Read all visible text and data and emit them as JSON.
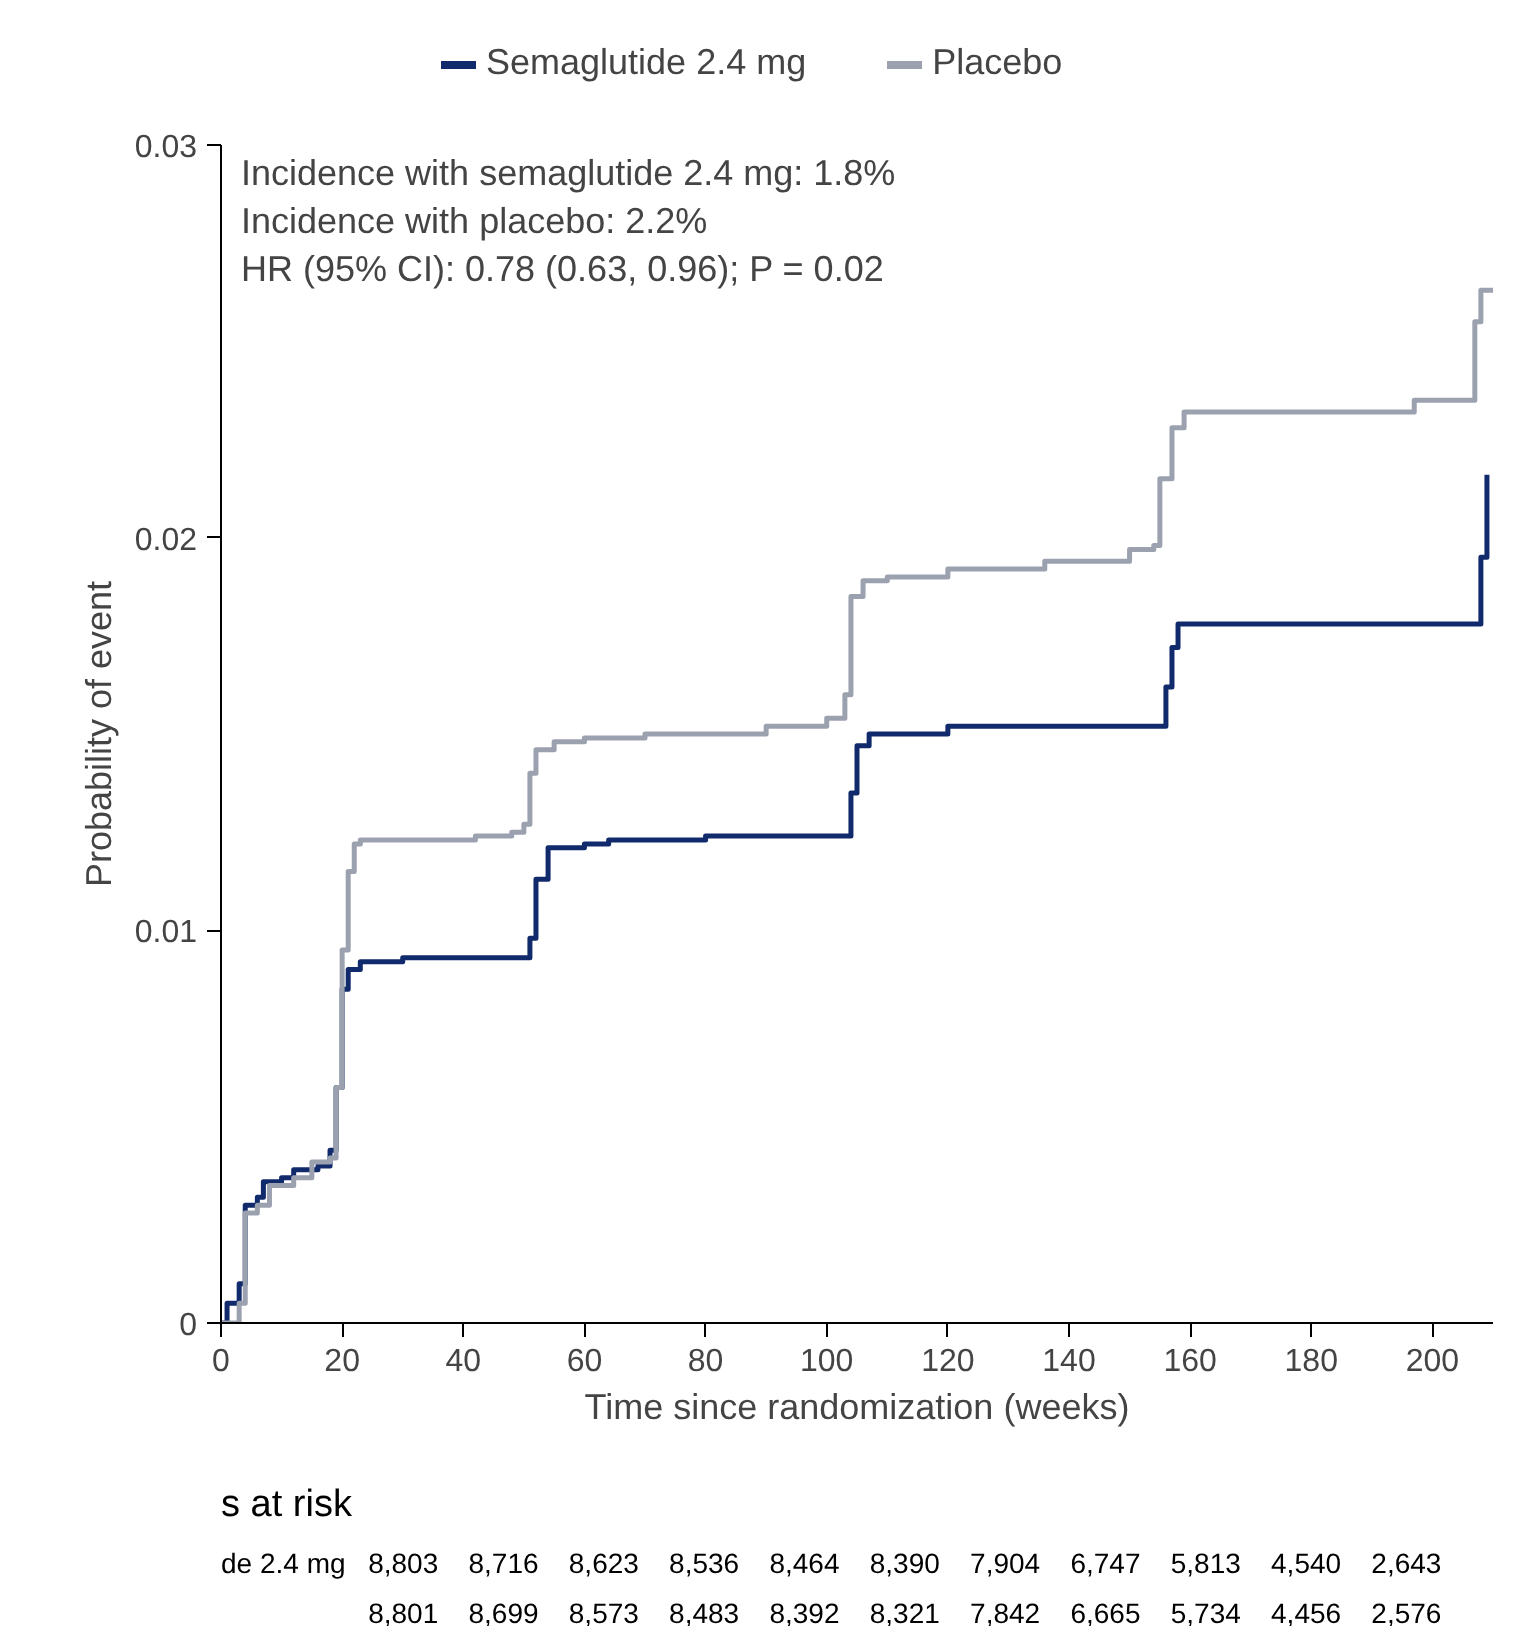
{
  "chart_data": {
    "type": "step",
    "xlabel": "Time since randomization (weeks)",
    "ylabel": "Probability of event",
    "xlim": [
      0,
      210
    ],
    "ylim": [
      0,
      0.03
    ],
    "xticks": [
      0,
      20,
      40,
      60,
      80,
      100,
      120,
      140,
      160,
      180,
      200
    ],
    "yticks": [
      0,
      0.01,
      0.02,
      0.03
    ],
    "legend": "top left",
    "grid": false,
    "series": [
      {
        "name": "Semaglutide 2.4 mg",
        "color": "#102a6b",
        "x": [
          0,
          1,
          3,
          4,
          6,
          7,
          10,
          12,
          16,
          18,
          19,
          20,
          21,
          23,
          30,
          50,
          51,
          52,
          54,
          60,
          64,
          80,
          103,
          104,
          105,
          107,
          120,
          155,
          156,
          157,
          158,
          207,
          208,
          209
        ],
        "values": [
          0,
          0.0005,
          0.001,
          0.003,
          0.0032,
          0.0036,
          0.0037,
          0.0039,
          0.004,
          0.0044,
          0.006,
          0.0085,
          0.009,
          0.0092,
          0.0093,
          0.0093,
          0.0098,
          0.0113,
          0.0121,
          0.0122,
          0.0123,
          0.0124,
          0.0124,
          0.0135,
          0.0147,
          0.015,
          0.0152,
          0.0152,
          0.0162,
          0.0172,
          0.0178,
          0.0178,
          0.0195,
          0.0216
        ]
      },
      {
        "name": "Placebo",
        "color": "#9ba1ae",
        "x": [
          0,
          3,
          4,
          6,
          8,
          12,
          15,
          18,
          19,
          20,
          21,
          22,
          23,
          40,
          42,
          48,
          50,
          51,
          52,
          55,
          60,
          70,
          90,
          100,
          103,
          104,
          106,
          110,
          120,
          136,
          150,
          154,
          155,
          157,
          159,
          196,
          197,
          206,
          207,
          208,
          210
        ],
        "values": [
          0,
          0.0005,
          0.0028,
          0.003,
          0.0035,
          0.0037,
          0.0041,
          0.0042,
          0.006,
          0.0095,
          0.0115,
          0.0122,
          0.0123,
          0.0123,
          0.0124,
          0.0125,
          0.0127,
          0.014,
          0.0146,
          0.0148,
          0.0149,
          0.015,
          0.0152,
          0.0154,
          0.016,
          0.0185,
          0.0189,
          0.019,
          0.0192,
          0.0194,
          0.0197,
          0.0198,
          0.0215,
          0.0228,
          0.0232,
          0.0232,
          0.0235,
          0.0235,
          0.0255,
          0.0263,
          0.0263
        ]
      }
    ],
    "annotations": [
      "Incidence with semaglutide 2.4 mg: 1.8%",
      "Incidence with placebo: 2.2%",
      "HR (95% CI): 0.78 (0.63, 0.96); P = 0.02",
      "s at risk",
      "de 2.4 mg",
      "8,803 8,716 8,623 8,536 8,464 8,390 7,904 6,747 5,813 4,540 2,643",
      "8,801 8,699 8,573 8,483 8,392 8,321 7,842 6,665 5,734 4,456 2,576"
    ]
  }
}
